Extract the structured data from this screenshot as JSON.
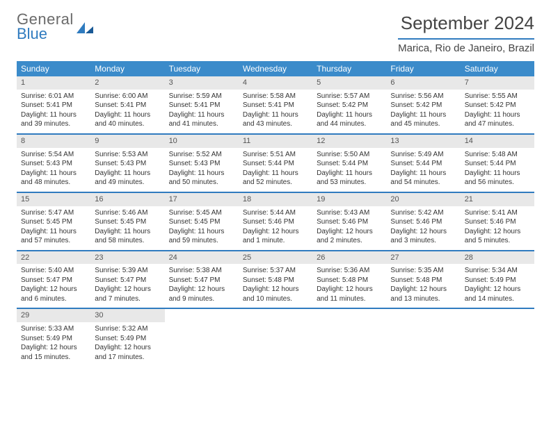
{
  "brand": {
    "top": "General",
    "bottom": "Blue"
  },
  "title": "September 2024",
  "location": "Marica, Rio de Janeiro, Brazil",
  "colors": {
    "header_bg": "#3b8bca",
    "accent": "#2f7bbf",
    "daynum_bg": "#e8e8e8",
    "text": "#333333",
    "brand_gray": "#6a6a6a"
  },
  "weekdays": [
    "Sunday",
    "Monday",
    "Tuesday",
    "Wednesday",
    "Thursday",
    "Friday",
    "Saturday"
  ],
  "days": [
    {
      "num": "1",
      "sunrise": "Sunrise: 6:01 AM",
      "sunset": "Sunset: 5:41 PM",
      "day1": "Daylight: 11 hours",
      "day2": "and 39 minutes."
    },
    {
      "num": "2",
      "sunrise": "Sunrise: 6:00 AM",
      "sunset": "Sunset: 5:41 PM",
      "day1": "Daylight: 11 hours",
      "day2": "and 40 minutes."
    },
    {
      "num": "3",
      "sunrise": "Sunrise: 5:59 AM",
      "sunset": "Sunset: 5:41 PM",
      "day1": "Daylight: 11 hours",
      "day2": "and 41 minutes."
    },
    {
      "num": "4",
      "sunrise": "Sunrise: 5:58 AM",
      "sunset": "Sunset: 5:41 PM",
      "day1": "Daylight: 11 hours",
      "day2": "and 43 minutes."
    },
    {
      "num": "5",
      "sunrise": "Sunrise: 5:57 AM",
      "sunset": "Sunset: 5:42 PM",
      "day1": "Daylight: 11 hours",
      "day2": "and 44 minutes."
    },
    {
      "num": "6",
      "sunrise": "Sunrise: 5:56 AM",
      "sunset": "Sunset: 5:42 PM",
      "day1": "Daylight: 11 hours",
      "day2": "and 45 minutes."
    },
    {
      "num": "7",
      "sunrise": "Sunrise: 5:55 AM",
      "sunset": "Sunset: 5:42 PM",
      "day1": "Daylight: 11 hours",
      "day2": "and 47 minutes."
    },
    {
      "num": "8",
      "sunrise": "Sunrise: 5:54 AM",
      "sunset": "Sunset: 5:43 PM",
      "day1": "Daylight: 11 hours",
      "day2": "and 48 minutes."
    },
    {
      "num": "9",
      "sunrise": "Sunrise: 5:53 AM",
      "sunset": "Sunset: 5:43 PM",
      "day1": "Daylight: 11 hours",
      "day2": "and 49 minutes."
    },
    {
      "num": "10",
      "sunrise": "Sunrise: 5:52 AM",
      "sunset": "Sunset: 5:43 PM",
      "day1": "Daylight: 11 hours",
      "day2": "and 50 minutes."
    },
    {
      "num": "11",
      "sunrise": "Sunrise: 5:51 AM",
      "sunset": "Sunset: 5:44 PM",
      "day1": "Daylight: 11 hours",
      "day2": "and 52 minutes."
    },
    {
      "num": "12",
      "sunrise": "Sunrise: 5:50 AM",
      "sunset": "Sunset: 5:44 PM",
      "day1": "Daylight: 11 hours",
      "day2": "and 53 minutes."
    },
    {
      "num": "13",
      "sunrise": "Sunrise: 5:49 AM",
      "sunset": "Sunset: 5:44 PM",
      "day1": "Daylight: 11 hours",
      "day2": "and 54 minutes."
    },
    {
      "num": "14",
      "sunrise": "Sunrise: 5:48 AM",
      "sunset": "Sunset: 5:44 PM",
      "day1": "Daylight: 11 hours",
      "day2": "and 56 minutes."
    },
    {
      "num": "15",
      "sunrise": "Sunrise: 5:47 AM",
      "sunset": "Sunset: 5:45 PM",
      "day1": "Daylight: 11 hours",
      "day2": "and 57 minutes."
    },
    {
      "num": "16",
      "sunrise": "Sunrise: 5:46 AM",
      "sunset": "Sunset: 5:45 PM",
      "day1": "Daylight: 11 hours",
      "day2": "and 58 minutes."
    },
    {
      "num": "17",
      "sunrise": "Sunrise: 5:45 AM",
      "sunset": "Sunset: 5:45 PM",
      "day1": "Daylight: 11 hours",
      "day2": "and 59 minutes."
    },
    {
      "num": "18",
      "sunrise": "Sunrise: 5:44 AM",
      "sunset": "Sunset: 5:46 PM",
      "day1": "Daylight: 12 hours",
      "day2": "and 1 minute."
    },
    {
      "num": "19",
      "sunrise": "Sunrise: 5:43 AM",
      "sunset": "Sunset: 5:46 PM",
      "day1": "Daylight: 12 hours",
      "day2": "and 2 minutes."
    },
    {
      "num": "20",
      "sunrise": "Sunrise: 5:42 AM",
      "sunset": "Sunset: 5:46 PM",
      "day1": "Daylight: 12 hours",
      "day2": "and 3 minutes."
    },
    {
      "num": "21",
      "sunrise": "Sunrise: 5:41 AM",
      "sunset": "Sunset: 5:46 PM",
      "day1": "Daylight: 12 hours",
      "day2": "and 5 minutes."
    },
    {
      "num": "22",
      "sunrise": "Sunrise: 5:40 AM",
      "sunset": "Sunset: 5:47 PM",
      "day1": "Daylight: 12 hours",
      "day2": "and 6 minutes."
    },
    {
      "num": "23",
      "sunrise": "Sunrise: 5:39 AM",
      "sunset": "Sunset: 5:47 PM",
      "day1": "Daylight: 12 hours",
      "day2": "and 7 minutes."
    },
    {
      "num": "24",
      "sunrise": "Sunrise: 5:38 AM",
      "sunset": "Sunset: 5:47 PM",
      "day1": "Daylight: 12 hours",
      "day2": "and 9 minutes."
    },
    {
      "num": "25",
      "sunrise": "Sunrise: 5:37 AM",
      "sunset": "Sunset: 5:48 PM",
      "day1": "Daylight: 12 hours",
      "day2": "and 10 minutes."
    },
    {
      "num": "26",
      "sunrise": "Sunrise: 5:36 AM",
      "sunset": "Sunset: 5:48 PM",
      "day1": "Daylight: 12 hours",
      "day2": "and 11 minutes."
    },
    {
      "num": "27",
      "sunrise": "Sunrise: 5:35 AM",
      "sunset": "Sunset: 5:48 PM",
      "day1": "Daylight: 12 hours",
      "day2": "and 13 minutes."
    },
    {
      "num": "28",
      "sunrise": "Sunrise: 5:34 AM",
      "sunset": "Sunset: 5:49 PM",
      "day1": "Daylight: 12 hours",
      "day2": "and 14 minutes."
    },
    {
      "num": "29",
      "sunrise": "Sunrise: 5:33 AM",
      "sunset": "Sunset: 5:49 PM",
      "day1": "Daylight: 12 hours",
      "day2": "and 15 minutes."
    },
    {
      "num": "30",
      "sunrise": "Sunrise: 5:32 AM",
      "sunset": "Sunset: 5:49 PM",
      "day1": "Daylight: 12 hours",
      "day2": "and 17 minutes."
    }
  ]
}
